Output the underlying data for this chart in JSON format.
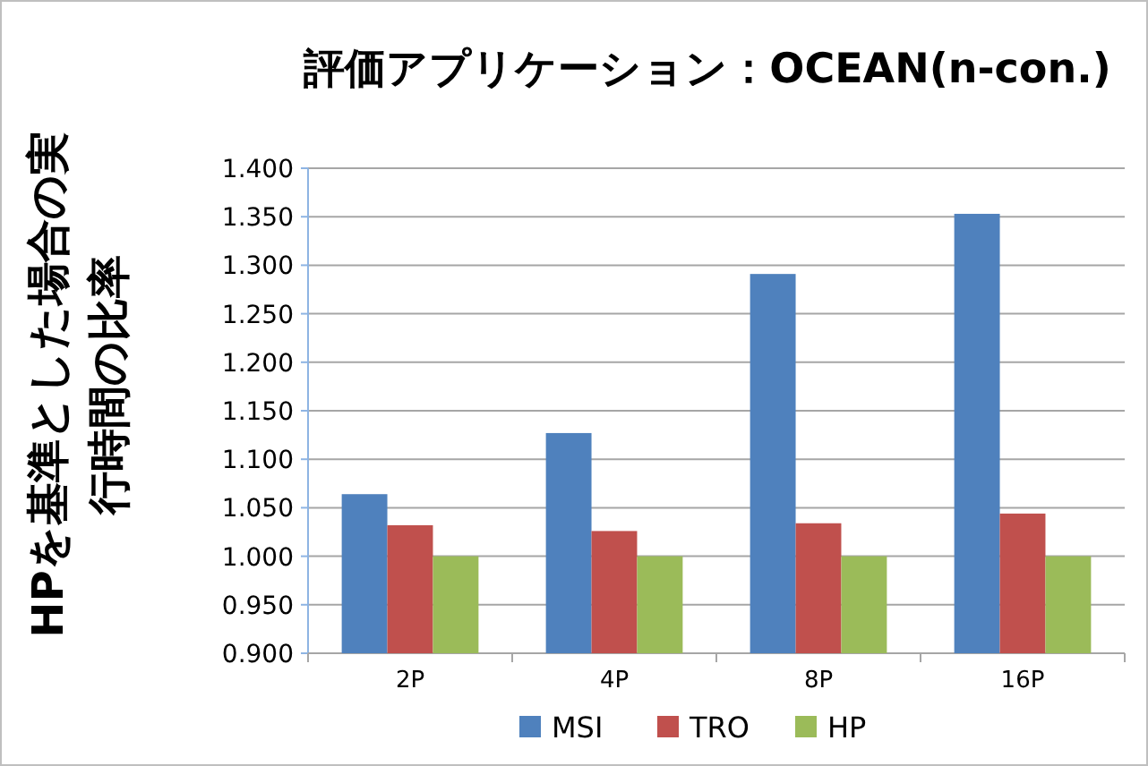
{
  "chart_data": {
    "type": "bar",
    "title": "評価アプリケーション：OCEAN(n-con.)",
    "ylabel": "HPを基準とした場合の実行時間の比率",
    "categories": [
      "2P",
      "4P",
      "8P",
      "16P"
    ],
    "series": [
      {
        "name": "MSI",
        "color": "#4f81bd",
        "values": [
          1.064,
          1.127,
          1.291,
          1.353
        ]
      },
      {
        "name": "TRO",
        "color": "#c0504d",
        "values": [
          1.032,
          1.026,
          1.034,
          1.044
        ]
      },
      {
        "name": "HP",
        "color": "#9bbb59",
        "values": [
          1.0,
          1.0,
          1.0,
          1.0
        ]
      }
    ],
    "ylim": [
      0.9,
      1.4
    ],
    "yticks": [
      {
        "value": 0.9,
        "label": "0.900"
      },
      {
        "value": 0.95,
        "label": "0.950"
      },
      {
        "value": 1.0,
        "label": "1.000"
      },
      {
        "value": 1.05,
        "label": "1.050"
      },
      {
        "value": 1.1,
        "label": "1.100"
      },
      {
        "value": 1.15,
        "label": "1.150"
      },
      {
        "value": 1.2,
        "label": "1.200"
      },
      {
        "value": 1.25,
        "label": "1.250"
      },
      {
        "value": 1.3,
        "label": "1.300"
      },
      {
        "value": 1.35,
        "label": "1.350"
      },
      {
        "value": 1.4,
        "label": "1.400"
      }
    ],
    "grid": "y",
    "legend": "bottom"
  }
}
